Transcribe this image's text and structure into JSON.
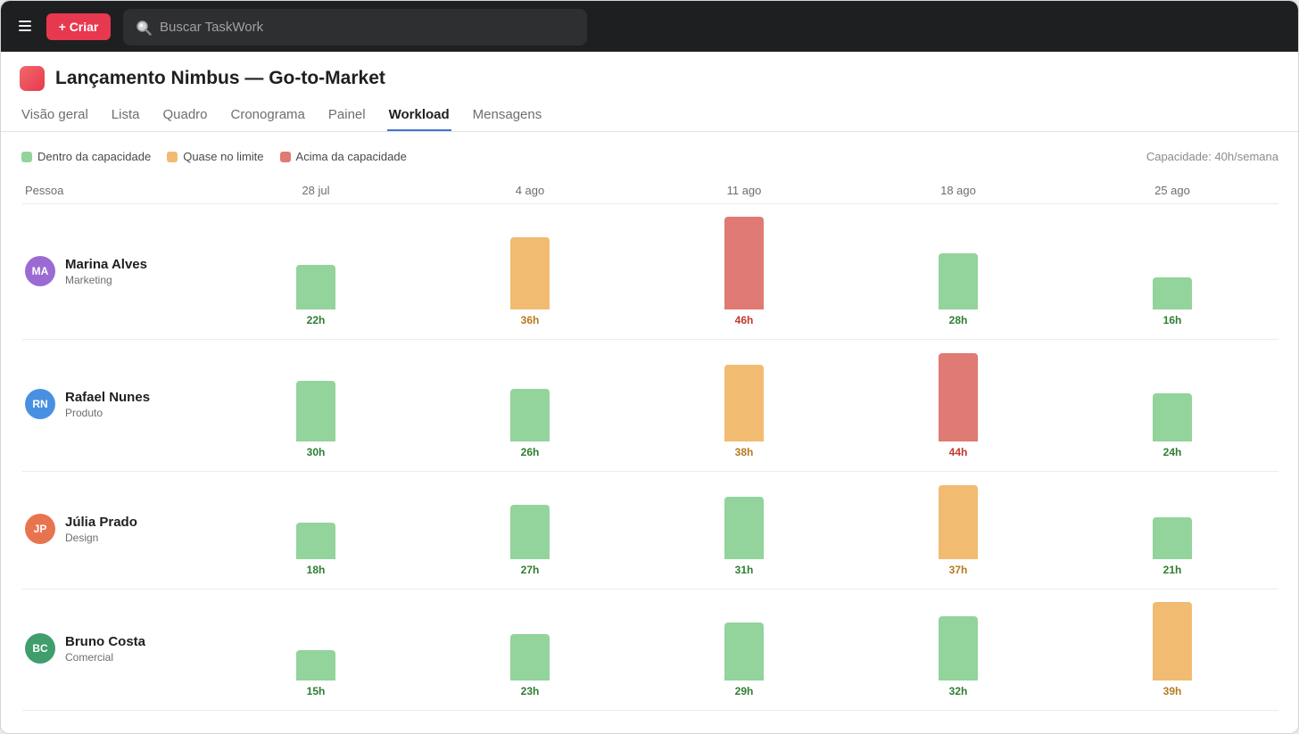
{
  "topbar": {
    "menu_icon": "hamburger-menu-icon",
    "create_label": "+ Criar",
    "search_placeholder": "Buscar TaskWork",
    "search_icon": "magnifier-icon"
  },
  "project": {
    "title": "Lançamento Nimbus — Go-to-Market",
    "icon_color": "#e8384f",
    "tabs": [
      {
        "label": "Visão geral",
        "active": false
      },
      {
        "label": "Lista",
        "active": false
      },
      {
        "label": "Quadro",
        "active": false
      },
      {
        "label": "Cronograma",
        "active": false
      },
      {
        "label": "Painel",
        "active": false
      },
      {
        "label": "Workload",
        "active": true
      },
      {
        "label": "Mensagens",
        "active": false
      }
    ]
  },
  "legend": {
    "items": [
      {
        "label": "Dentro da capacidade",
        "status": "ok"
      },
      {
        "label": "Quase no limite",
        "status": "near"
      },
      {
        "label": "Acima da capacidade",
        "status": "over"
      }
    ],
    "capacity_text": "Capacidade: 40h/semana"
  },
  "colors": {
    "ok": {
      "bar": "#92d49b",
      "text": "#2e7d32"
    },
    "near": {
      "bar": "#f2bb72",
      "text": "#b7791f"
    },
    "over": {
      "bar": "#e07a74",
      "text": "#c0392b"
    },
    "accent": "#4573d2",
    "create": "#e8384f"
  },
  "grid": {
    "person_header": "Pessoa",
    "weeks": [
      "28 jul",
      "4 ago",
      "11 ago",
      "18 ago",
      "25 ago"
    ]
  },
  "chart_data": {
    "type": "bar",
    "categories": [
      "28 jul",
      "4 ago",
      "11 ago",
      "18 ago",
      "25 ago"
    ],
    "series": [
      {
        "name": "Marina Alves",
        "values": [
          22,
          36,
          46,
          28,
          16
        ],
        "labels": [
          "22h",
          "36h",
          "46h",
          "28h",
          "16h"
        ],
        "status": [
          "ok",
          "near",
          "over",
          "ok",
          "ok"
        ]
      },
      {
        "name": "Rafael Nunes",
        "values": [
          30,
          26,
          38,
          44,
          24
        ],
        "labels": [
          "30h",
          "26h",
          "38h",
          "44h",
          "24h"
        ],
        "status": [
          "ok",
          "ok",
          "near",
          "over",
          "ok"
        ]
      },
      {
        "name": "Júlia Prado",
        "values": [
          18,
          27,
          31,
          37,
          21
        ],
        "labels": [
          "18h",
          "27h",
          "31h",
          "37h",
          "21h"
        ],
        "status": [
          "ok",
          "ok",
          "ok",
          "near",
          "ok"
        ]
      },
      {
        "name": "Bruno Costa",
        "values": [
          15,
          23,
          29,
          32,
          39
        ],
        "labels": [
          "15h",
          "23h",
          "29h",
          "32h",
          "39h"
        ],
        "status": [
          "ok",
          "ok",
          "ok",
          "ok",
          "near"
        ]
      }
    ]
  },
  "people": [
    {
      "initials": "MA",
      "name": "Marina Alves",
      "role": "Marketing",
      "color": "#9b6bd3"
    },
    {
      "initials": "RN",
      "name": "Rafael Nunes",
      "role": "Produto",
      "color": "#4a90e2"
    },
    {
      "initials": "JP",
      "name": "Júlia Prado",
      "role": "Design",
      "color": "#e8744f"
    },
    {
      "initials": "BC",
      "name": "Bruno Costa",
      "role": "Comercial",
      "color": "#3f9e6b"
    }
  ]
}
